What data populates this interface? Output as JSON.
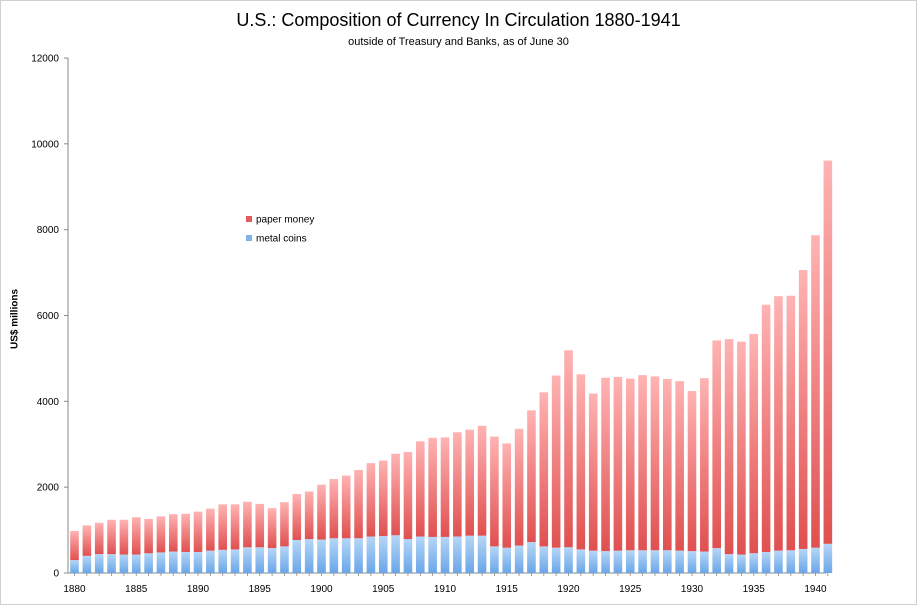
{
  "chart_data": {
    "type": "bar",
    "stacked": true,
    "title": "U.S.: Composition of Currency In Circulation 1880-1941",
    "subtitle": "outside of Treasury and Banks, as of June 30",
    "ylabel": "US$ millions",
    "xlabel": "",
    "ylim": [
      0,
      12000
    ],
    "yticks": [
      0,
      2000,
      4000,
      6000,
      8000,
      10000,
      12000
    ],
    "xticks": [
      1880,
      1885,
      1890,
      1895,
      1900,
      1905,
      1910,
      1915,
      1920,
      1925,
      1930,
      1935,
      1940
    ],
    "legend_position": "upper-left",
    "categories": [
      1880,
      1881,
      1882,
      1883,
      1884,
      1885,
      1886,
      1887,
      1888,
      1889,
      1890,
      1891,
      1892,
      1893,
      1894,
      1895,
      1896,
      1897,
      1898,
      1899,
      1900,
      1901,
      1902,
      1903,
      1904,
      1905,
      1906,
      1907,
      1908,
      1909,
      1910,
      1911,
      1912,
      1913,
      1914,
      1915,
      1916,
      1917,
      1918,
      1919,
      1920,
      1921,
      1922,
      1923,
      1924,
      1925,
      1926,
      1927,
      1928,
      1929,
      1930,
      1931,
      1932,
      1933,
      1934,
      1935,
      1936,
      1937,
      1938,
      1939,
      1940,
      1941
    ],
    "series": [
      {
        "name": "metal coins",
        "color": "#7fb3ea",
        "values": [
          300,
          400,
          440,
          440,
          430,
          430,
          460,
          480,
          500,
          490,
          490,
          520,
          540,
          550,
          600,
          600,
          580,
          620,
          770,
          790,
          780,
          810,
          810,
          810,
          850,
          860,
          880,
          790,
          850,
          840,
          840,
          850,
          870,
          870,
          620,
          590,
          640,
          720,
          620,
          590,
          600,
          550,
          520,
          510,
          520,
          530,
          530,
          530,
          530,
          520,
          510,
          500,
          580,
          440,
          430,
          460,
          490,
          520,
          530,
          560,
          590,
          680
        ]
      },
      {
        "name": "paper money",
        "color": "#e45b5b",
        "values": [
          680,
          710,
          730,
          800,
          810,
          870,
          800,
          840,
          870,
          890,
          940,
          980,
          1060,
          1050,
          1060,
          1010,
          930,
          1030,
          1070,
          1110,
          1280,
          1380,
          1460,
          1590,
          1710,
          1760,
          1900,
          2030,
          2220,
          2310,
          2320,
          2430,
          2470,
          2560,
          2560,
          2430,
          2720,
          3070,
          3590,
          4010,
          4590,
          4080,
          3660,
          4040,
          4050,
          4000,
          4080,
          4050,
          3990,
          3950,
          3730,
          4040,
          4840,
          5010,
          4960,
          5110,
          5760,
          5930,
          5930,
          6500,
          7280,
          8930
        ]
      }
    ]
  }
}
